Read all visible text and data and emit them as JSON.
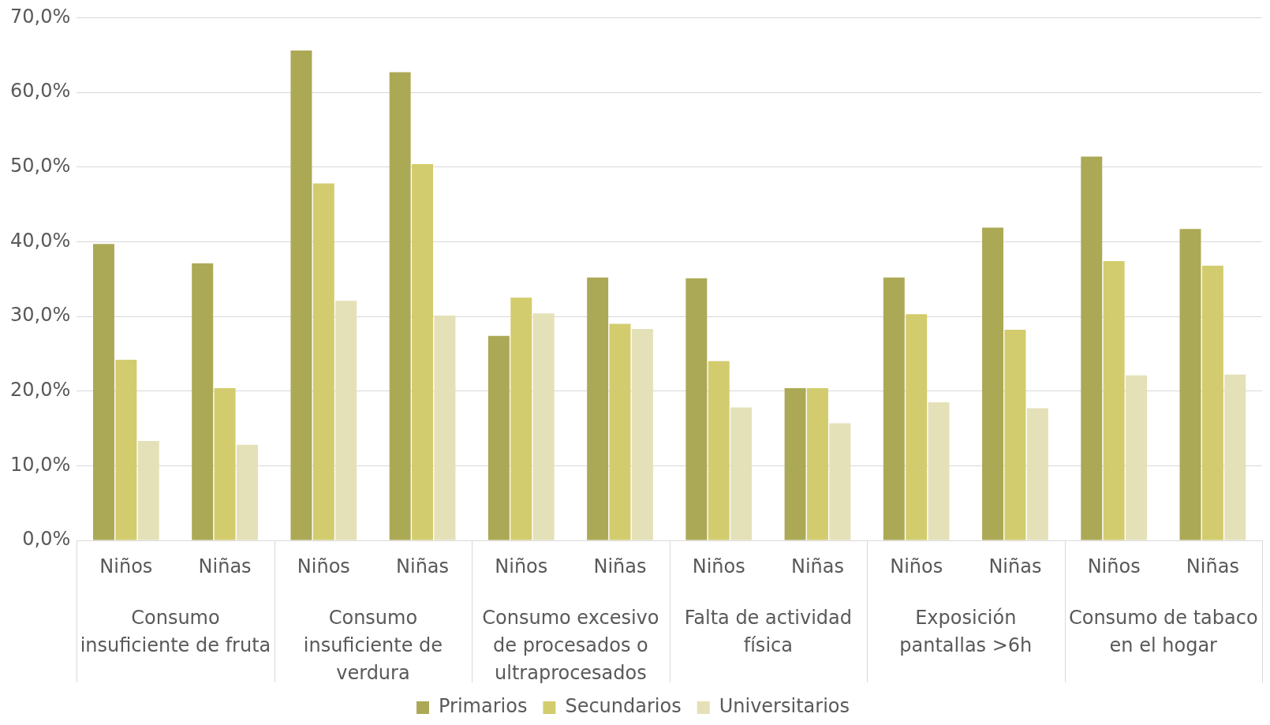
{
  "chart_data": {
    "type": "bar",
    "categories": [
      "Niños",
      "Niñas",
      "Niños",
      "Niñas",
      "Niños",
      "Niñas",
      "Niños",
      "Niñas",
      "Niños",
      "Niñas",
      "Niños",
      "Niñas"
    ],
    "annotations": [
      "Consumo insuficiente de fruta",
      "Consumo insuficiente de verdura",
      "Consumo excesivo de procesados o ultraprocesados",
      "Falta de actividad física",
      "Exposición pantallas >6h",
      "Consumo de tabaco en el hogar"
    ],
    "series": [
      {
        "name": "Primarios",
        "color": "#aca956",
        "values": [
          39.7,
          37.1,
          65.6,
          62.7,
          27.4,
          35.2,
          35.1,
          20.4,
          35.2,
          41.9,
          51.4,
          41.7
        ]
      },
      {
        "name": "Secundarios",
        "color": "#d3cc6e",
        "values": [
          24.2,
          20.4,
          47.8,
          50.4,
          32.5,
          29.0,
          24.0,
          20.4,
          30.3,
          28.2,
          37.4,
          36.8
        ]
      },
      {
        "name": "Universitarios",
        "color": "#e4e0b8",
        "values": [
          13.3,
          12.8,
          32.1,
          30.1,
          30.4,
          28.3,
          17.8,
          15.7,
          18.5,
          17.7,
          22.1,
          22.2
        ]
      }
    ],
    "ylim": [
      0,
      70
    ],
    "yticks": [
      {
        "value": 0,
        "label": "0,0%"
      },
      {
        "value": 10,
        "label": "10,0%"
      },
      {
        "value": 20,
        "label": "20,0%"
      },
      {
        "value": 30,
        "label": "30,0%"
      },
      {
        "value": 40,
        "label": "40,0%"
      },
      {
        "value": 50,
        "label": "50,0%"
      },
      {
        "value": 60,
        "label": "60,0%"
      },
      {
        "value": 70,
        "label": "70,0%"
      }
    ],
    "grid": "y",
    "legend": "bottom"
  }
}
